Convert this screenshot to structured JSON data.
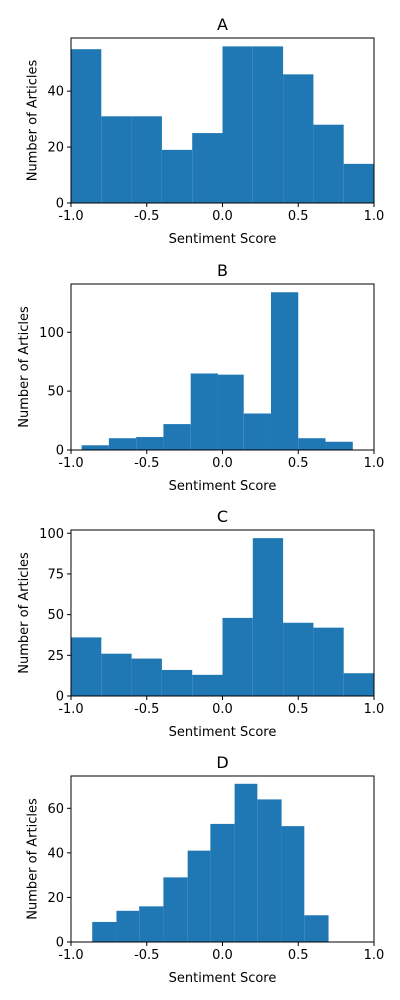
{
  "chart_data": [
    {
      "type": "bar",
      "title": "A",
      "xlabel": "Sentiment Score",
      "ylabel": "Number of Articles",
      "xlim": [
        -1.0,
        1.0
      ],
      "ylim": [
        0,
        59
      ],
      "xticks": [
        "-1.0",
        "-0.5",
        "0.0",
        "0.5",
        "1.0"
      ],
      "xtick_values": [
        -1.0,
        -0.5,
        0.0,
        0.5,
        1.0
      ],
      "yticks": [
        "0",
        "20",
        "40"
      ],
      "ytick_values": [
        0,
        20,
        40
      ],
      "bins": [
        {
          "x0": -1.0,
          "x1": -0.8,
          "value": 55
        },
        {
          "x0": -0.8,
          "x1": -0.6,
          "value": 31
        },
        {
          "x0": -0.6,
          "x1": -0.4,
          "value": 31
        },
        {
          "x0": -0.4,
          "x1": -0.2,
          "value": 19
        },
        {
          "x0": -0.2,
          "x1": 0.0,
          "value": 25
        },
        {
          "x0": 0.0,
          "x1": 0.2,
          "value": 56
        },
        {
          "x0": 0.2,
          "x1": 0.4,
          "value": 56
        },
        {
          "x0": 0.4,
          "x1": 0.6,
          "value": 46
        },
        {
          "x0": 0.6,
          "x1": 0.8,
          "value": 28
        },
        {
          "x0": 0.8,
          "x1": 1.0,
          "value": 14
        }
      ],
      "color": "#1f77b4"
    },
    {
      "type": "bar",
      "title": "B",
      "xlabel": "Sentiment Score",
      "ylabel": "Number of Articles",
      "xlim": [
        -1.0,
        1.0
      ],
      "ylim": [
        0,
        141
      ],
      "xticks": [
        "-1.0",
        "-0.5",
        "0.0",
        "0.5",
        "1.0"
      ],
      "xtick_values": [
        -1.0,
        -0.5,
        0.0,
        0.5,
        1.0
      ],
      "yticks": [
        "0",
        "50",
        "100"
      ],
      "ytick_values": [
        0,
        50,
        100
      ],
      "bins": [
        {
          "x0": -0.93,
          "x1": -0.75,
          "value": 4
        },
        {
          "x0": -0.75,
          "x1": -0.57,
          "value": 10
        },
        {
          "x0": -0.57,
          "x1": -0.39,
          "value": 11
        },
        {
          "x0": -0.39,
          "x1": -0.21,
          "value": 22
        },
        {
          "x0": -0.21,
          "x1": -0.03,
          "value": 65
        },
        {
          "x0": -0.03,
          "x1": 0.14,
          "value": 64
        },
        {
          "x0": 0.14,
          "x1": 0.32,
          "value": 31
        },
        {
          "x0": 0.32,
          "x1": 0.5,
          "value": 134
        },
        {
          "x0": 0.5,
          "x1": 0.68,
          "value": 10
        },
        {
          "x0": 0.68,
          "x1": 0.86,
          "value": 7
        }
      ],
      "color": "#1f77b4"
    },
    {
      "type": "bar",
      "title": "C",
      "xlabel": "Sentiment Score",
      "ylabel": "Number of Articles",
      "xlim": [
        -1.0,
        1.0
      ],
      "ylim": [
        0,
        102
      ],
      "xticks": [
        "-1.0",
        "-0.5",
        "0.0",
        "0.5",
        "1.0"
      ],
      "xtick_values": [
        -1.0,
        -0.5,
        0.0,
        0.5,
        1.0
      ],
      "yticks": [
        "0",
        "25",
        "50",
        "75",
        "100"
      ],
      "ytick_values": [
        0,
        25,
        50,
        75,
        100
      ],
      "bins": [
        {
          "x0": -1.0,
          "x1": -0.8,
          "value": 36
        },
        {
          "x0": -0.8,
          "x1": -0.6,
          "value": 26
        },
        {
          "x0": -0.6,
          "x1": -0.4,
          "value": 23
        },
        {
          "x0": -0.4,
          "x1": -0.2,
          "value": 16
        },
        {
          "x0": -0.2,
          "x1": 0.0,
          "value": 13
        },
        {
          "x0": 0.0,
          "x1": 0.2,
          "value": 48
        },
        {
          "x0": 0.2,
          "x1": 0.4,
          "value": 97
        },
        {
          "x0": 0.4,
          "x1": 0.6,
          "value": 45
        },
        {
          "x0": 0.6,
          "x1": 0.8,
          "value": 42
        },
        {
          "x0": 0.8,
          "x1": 1.0,
          "value": 14
        }
      ],
      "color": "#1f77b4"
    },
    {
      "type": "bar",
      "title": "D",
      "xlabel": "Sentiment Score",
      "ylabel": "Number of Articles",
      "xlim": [
        -1.0,
        1.0
      ],
      "ylim": [
        0,
        74.5
      ],
      "xticks": [
        "-1.0",
        "-0.5",
        "0.0",
        "0.5",
        "1.0"
      ],
      "xtick_values": [
        -1.0,
        -0.5,
        0.0,
        0.5,
        1.0
      ],
      "yticks": [
        "0",
        "20",
        "40",
        "60"
      ],
      "ytick_values": [
        0,
        20,
        40,
        60
      ],
      "bins": [
        {
          "x0": -0.86,
          "x1": -0.7,
          "value": 9
        },
        {
          "x0": -0.7,
          "x1": -0.55,
          "value": 14
        },
        {
          "x0": -0.55,
          "x1": -0.39,
          "value": 16
        },
        {
          "x0": -0.39,
          "x1": -0.23,
          "value": 29
        },
        {
          "x0": -0.23,
          "x1": -0.08,
          "value": 41
        },
        {
          "x0": -0.08,
          "x1": 0.08,
          "value": 53
        },
        {
          "x0": 0.08,
          "x1": 0.23,
          "value": 71
        },
        {
          "x0": 0.23,
          "x1": 0.39,
          "value": 64
        },
        {
          "x0": 0.39,
          "x1": 0.54,
          "value": 52
        },
        {
          "x0": 0.54,
          "x1": 0.7,
          "value": 12
        }
      ],
      "color": "#1f77b4"
    }
  ]
}
